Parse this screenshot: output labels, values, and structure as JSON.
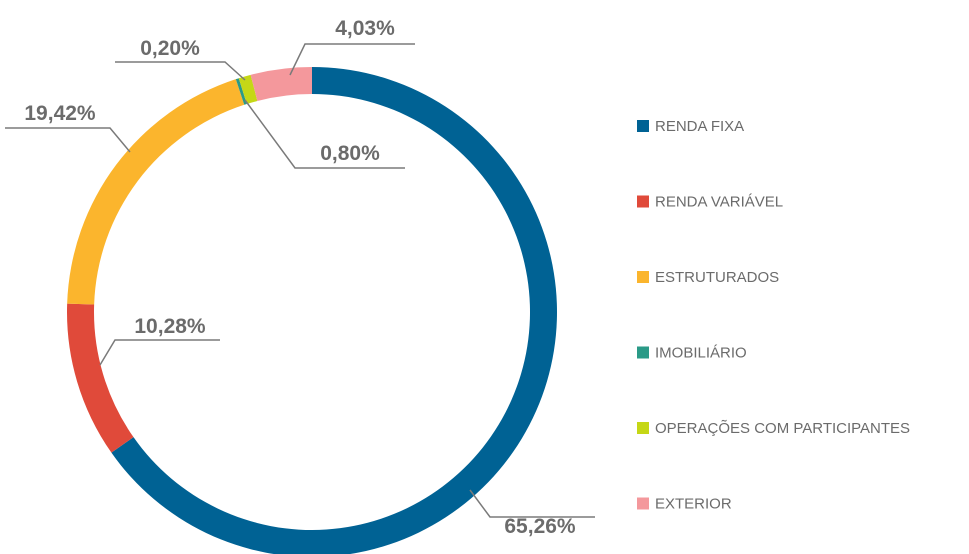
{
  "chart_data": {
    "type": "donut",
    "categories": [
      "RENDA FIXA",
      "RENDA VARIÁVEL",
      "ESTRUTURADOS",
      "IMOBILIÁRIO",
      "OPERAÇÕES COM PARTICIPANTES",
      "EXTERIOR"
    ],
    "values": [
      65.26,
      10.28,
      19.42,
      0.2,
      0.8,
      4.03
    ],
    "value_labels": [
      "65,26%",
      "10,28%",
      "19,42%",
      "0,20%",
      "0,80%",
      "4,03%"
    ],
    "colors": [
      "#006294",
      "#e04a3a",
      "#fbb52d",
      "#2a9a87",
      "#c5d716",
      "#f4989c"
    ],
    "legend": "right"
  }
}
